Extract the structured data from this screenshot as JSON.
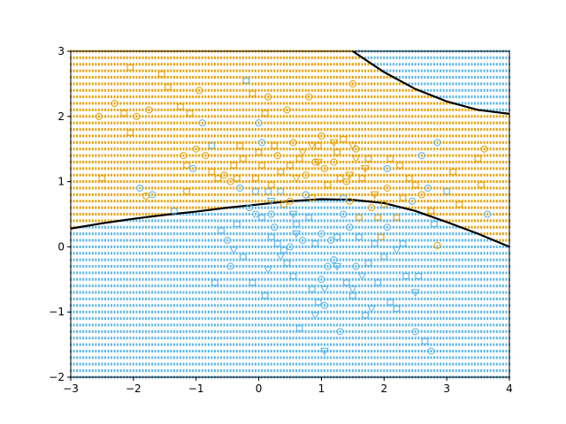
{
  "chart_data": {
    "type": "scatter",
    "title": "",
    "xlabel": "",
    "ylabel": "",
    "xlim": [
      -3,
      4
    ],
    "ylim": [
      -2,
      3
    ],
    "xticks": [
      -3,
      -2,
      -1,
      0,
      1,
      2,
      3,
      4
    ],
    "yticks": [
      -2,
      -1,
      0,
      1,
      2,
      3
    ],
    "xtick_labels": [
      "−3",
      "−2",
      "−1",
      "0",
      "1",
      "2",
      "3",
      "4"
    ],
    "ytick_labels": [
      "−2",
      "−1",
      "0",
      "1",
      "2",
      "3"
    ],
    "grid": false,
    "legend": "none",
    "colors": {
      "orange": "#E69F00",
      "blue": "#56B4E9",
      "boundary": "#000000"
    },
    "background_regions": {
      "style": "dense dotted grid",
      "step_x": 0.05,
      "step_y": 0.1,
      "orange_region": "above lower boundary and below upper boundary",
      "blue_region": "below lower boundary, or above upper boundary"
    },
    "boundaries": [
      {
        "name": "",
        "points": [
          [
            -3.0,
            0.28
          ],
          [
            -2.5,
            0.36
          ],
          [
            -2.0,
            0.43
          ],
          [
            -1.5,
            0.49
          ],
          [
            -1.0,
            0.54
          ],
          [
            -0.5,
            0.6
          ],
          [
            0.0,
            0.65
          ],
          [
            0.5,
            0.7
          ],
          [
            1.0,
            0.73
          ],
          [
            1.5,
            0.72
          ],
          [
            2.0,
            0.67
          ],
          [
            2.5,
            0.55
          ],
          [
            3.0,
            0.38
          ],
          [
            3.5,
            0.2
          ],
          [
            4.0,
            0.0
          ]
        ]
      },
      {
        "name": "",
        "points": [
          [
            1.5,
            3.0
          ],
          [
            2.0,
            2.68
          ],
          [
            2.5,
            2.42
          ],
          [
            3.0,
            2.23
          ],
          [
            3.5,
            2.1
          ],
          [
            4.0,
            2.04
          ]
        ]
      }
    ],
    "series": [
      {
        "color": "orange",
        "marker": "circle",
        "points": [
          [
            -2.55,
            2.0
          ],
          [
            -2.5,
            1.05
          ],
          [
            -2.3,
            2.2
          ],
          [
            -2.15,
            2.05
          ],
          [
            -2.05,
            1.75
          ],
          [
            -2.05,
            2.75
          ],
          [
            -1.95,
            2.0
          ],
          [
            -1.8,
            0.78
          ],
          [
            -1.75,
            2.1
          ],
          [
            -1.55,
            2.65
          ],
          [
            -1.45,
            2.45
          ],
          [
            -1.25,
            2.15
          ],
          [
            -1.2,
            1.4
          ],
          [
            -1.15,
            1.25
          ],
          [
            -1.15,
            0.85
          ],
          [
            -1.1,
            2.05
          ],
          [
            -1.0,
            1.5
          ],
          [
            -0.95,
            2.4
          ],
          [
            -0.85,
            1.4
          ],
          [
            -0.75,
            1.15
          ],
          [
            -0.65,
            1.05
          ],
          [
            -0.55,
            1.1
          ],
          [
            -0.45,
            1.0
          ],
          [
            -0.4,
            1.25
          ],
          [
            -0.35,
            1.05
          ],
          [
            -0.3,
            1.55
          ],
          [
            -0.25,
            1.35
          ],
          [
            -0.2,
            2.55
          ],
          [
            -0.1,
            2.35
          ],
          [
            -0.05,
            1.05
          ],
          [
            0.0,
            1.45
          ],
          [
            0.05,
            1.25
          ],
          [
            0.1,
            2.05
          ],
          [
            0.15,
            2.3
          ],
          [
            0.2,
            0.95
          ],
          [
            0.25,
            1.55
          ],
          [
            0.3,
            1.4
          ],
          [
            0.35,
            1.15
          ],
          [
            0.4,
            0.65
          ],
          [
            0.45,
            2.1
          ],
          [
            0.5,
            1.25
          ],
          [
            0.5,
            0.7
          ],
          [
            0.55,
            1.6
          ],
          [
            0.65,
            1.35
          ],
          [
            0.75,
            1.1
          ],
          [
            0.8,
            2.3
          ],
          [
            0.85,
            0.75
          ],
          [
            0.9,
            1.3
          ],
          [
            0.95,
            1.55
          ],
          [
            1.0,
            1.7
          ],
          [
            1.05,
            1.2
          ],
          [
            1.1,
            0.95
          ],
          [
            1.2,
            1.3
          ],
          [
            1.25,
            1.45
          ],
          [
            1.3,
            1.05
          ],
          [
            1.35,
            1.65
          ],
          [
            1.4,
            1.0
          ],
          [
            1.45,
            0.7
          ],
          [
            1.5,
            2.5
          ],
          [
            1.55,
            1.5
          ],
          [
            1.6,
            0.45
          ],
          [
            1.65,
            1.05
          ],
          [
            1.75,
            1.35
          ],
          [
            1.8,
            0.6
          ],
          [
            1.9,
            0.45
          ],
          [
            1.95,
            0.15
          ],
          [
            2.0,
            0.65
          ],
          [
            2.05,
            0.9
          ],
          [
            2.1,
            1.35
          ],
          [
            2.2,
            0.45
          ],
          [
            2.25,
            1.25
          ],
          [
            2.3,
            0.75
          ],
          [
            2.4,
            1.05
          ],
          [
            2.5,
            0.95
          ],
          [
            2.6,
            0.8
          ],
          [
            2.75,
            0.55
          ],
          [
            2.85,
            0.02
          ],
          [
            3.1,
            1.15
          ],
          [
            3.2,
            0.65
          ],
          [
            3.5,
            1.35
          ],
          [
            3.55,
            0.95
          ],
          [
            3.6,
            1.5
          ]
        ]
      },
      {
        "color": "blue",
        "marker": "circle",
        "points": [
          [
            -1.9,
            0.9
          ],
          [
            -1.7,
            0.8
          ],
          [
            -1.35,
            0.55
          ],
          [
            -1.05,
            1.2
          ],
          [
            -0.9,
            1.9
          ],
          [
            -0.75,
            1.55
          ],
          [
            -0.7,
            -0.55
          ],
          [
            -0.6,
            0.25
          ],
          [
            -0.5,
            0.1
          ],
          [
            -0.45,
            -0.3
          ],
          [
            -0.35,
            0.35
          ],
          [
            -0.3,
            0.9
          ],
          [
            -0.25,
            -0.15
          ],
          [
            -0.2,
            2.55
          ],
          [
            -0.15,
            0.6
          ],
          [
            -0.1,
            -0.55
          ],
          [
            -0.05,
            0.5
          ],
          [
            -0.05,
            0.85
          ],
          [
            0.0,
            1.9
          ],
          [
            0.05,
            1.6
          ],
          [
            0.05,
            0.45
          ],
          [
            0.1,
            -0.75
          ],
          [
            0.15,
            0.85
          ],
          [
            0.2,
            0.15
          ],
          [
            0.25,
            0.3
          ],
          [
            0.3,
            0.05
          ],
          [
            0.35,
            0.85
          ],
          [
            0.4,
            -0.05
          ],
          [
            0.45,
            -0.25
          ],
          [
            0.5,
            0.0
          ],
          [
            0.55,
            -0.45
          ],
          [
            0.6,
            0.35
          ],
          [
            0.65,
            -1.25
          ],
          [
            0.75,
            0.8
          ],
          [
            0.8,
            0.45
          ],
          [
            0.85,
            -0.65
          ],
          [
            0.9,
            0.05
          ],
          [
            0.95,
            -0.85
          ],
          [
            1.0,
            -0.5
          ],
          [
            1.05,
            -0.9
          ],
          [
            1.1,
            -0.3
          ],
          [
            1.15,
            0.1
          ],
          [
            1.2,
            -0.2
          ],
          [
            1.25,
            0.15
          ],
          [
            1.3,
            -1.3
          ],
          [
            1.35,
            0.5
          ],
          [
            1.4,
            -0.55
          ],
          [
            1.45,
            0.3
          ],
          [
            1.5,
            -0.75
          ],
          [
            1.55,
            -0.3
          ],
          [
            1.6,
            0.15
          ],
          [
            1.7,
            -1.05
          ],
          [
            1.75,
            -0.25
          ],
          [
            1.85,
            0.05
          ],
          [
            1.9,
            -0.55
          ],
          [
            2.0,
            -0.15
          ],
          [
            2.05,
            0.3
          ],
          [
            2.1,
            -0.85
          ],
          [
            2.2,
            -0.95
          ],
          [
            2.3,
            0.05
          ],
          [
            2.35,
            -0.45
          ],
          [
            2.45,
            0.7
          ],
          [
            2.5,
            -1.3
          ],
          [
            2.55,
            -0.45
          ],
          [
            2.6,
            1.4
          ],
          [
            2.65,
            -1.45
          ],
          [
            2.7,
            0.9
          ],
          [
            2.75,
            -1.6
          ],
          [
            2.8,
            0.35
          ],
          [
            2.85,
            1.6
          ],
          [
            3.0,
            0.85
          ],
          [
            3.65,
            0.5
          ],
          [
            2.05,
            1.2
          ],
          [
            1.35,
            0.75
          ],
          [
            1.0,
            0.2
          ],
          [
            0.7,
            0.1
          ],
          [
            0.2,
            0.5
          ]
        ]
      },
      {
        "color": "blue",
        "marker": "triangle",
        "points": [
          [
            -0.4,
            -0.05
          ],
          [
            0.2,
            0.7
          ],
          [
            0.35,
            -0.15
          ],
          [
            0.6,
            0.2
          ],
          [
            0.9,
            -1.05
          ],
          [
            1.05,
            -0.65
          ],
          [
            1.25,
            -0.3
          ],
          [
            1.5,
            -0.65
          ],
          [
            1.65,
            -0.45
          ],
          [
            1.8,
            -0.95
          ],
          [
            1.05,
            -1.6
          ],
          [
            2.5,
            -0.7
          ],
          [
            2.2,
            -0.05
          ],
          [
            0.15,
            -0.35
          ],
          [
            0.55,
            0.5
          ]
        ]
      },
      {
        "color": "orange",
        "marker": "triangle",
        "points": [
          [
            0.85,
            1.55
          ],
          [
            1.2,
            1.6
          ],
          [
            1.5,
            1.55
          ],
          [
            0.95,
            1.3
          ],
          [
            0.6,
            1.05
          ],
          [
            1.45,
            1.1
          ],
          [
            1.7,
            1.2
          ],
          [
            1.85,
            0.8
          ],
          [
            0.7,
            1.45
          ],
          [
            1.55,
            1.35
          ]
        ]
      }
    ]
  }
}
